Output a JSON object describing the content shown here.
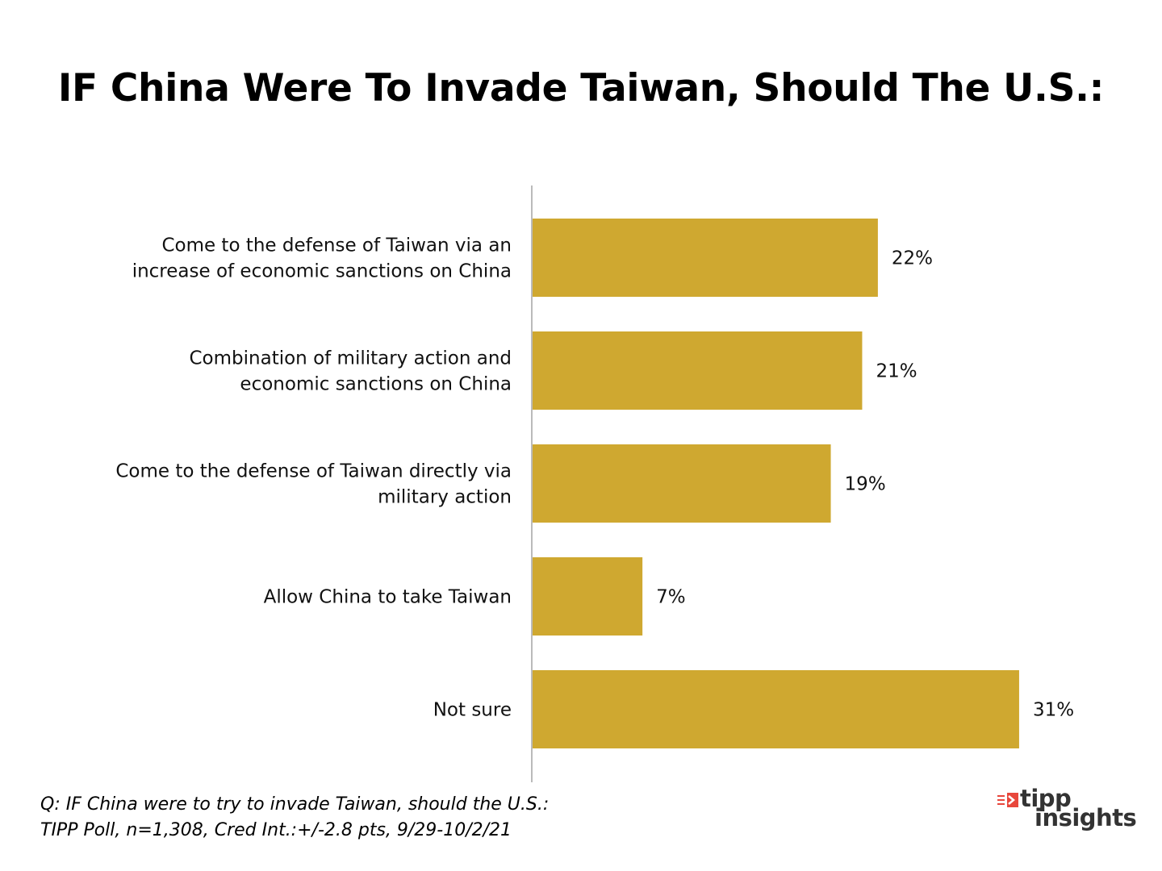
{
  "title": "IF China Were To Invade Taiwan, Should The U.S.:",
  "chart_data": {
    "type": "bar",
    "orientation": "horizontal",
    "categories": [
      [
        "Come to the defense of Taiwan via an",
        "increase of economic sanctions on China"
      ],
      [
        "Combination of military action and",
        "economic sanctions on China"
      ],
      [
        "Come to the defense of Taiwan directly via",
        "military action"
      ],
      [
        "Allow China to take Taiwan"
      ],
      [
        "Not sure"
      ]
    ],
    "values": [
      22,
      21,
      19,
      7,
      31
    ],
    "value_labels": [
      "22%",
      "21%",
      "19%",
      "7%",
      "31%"
    ],
    "bar_color": "#CFA830",
    "axis_color": "#BBBBBB",
    "grid": false,
    "legend": false
  },
  "footnote": {
    "line1": "Q:  IF China were to try to invade Taiwan, should the U.S.:",
    "line2": "TIPP Poll, n=1,308, Cred Int.:+/-2.8 pts, 9/29-10/2/21"
  },
  "logo": {
    "word1": "tipp",
    "word2": "insights",
    "mark_color": "#E8473C",
    "text_color": "#333333"
  }
}
